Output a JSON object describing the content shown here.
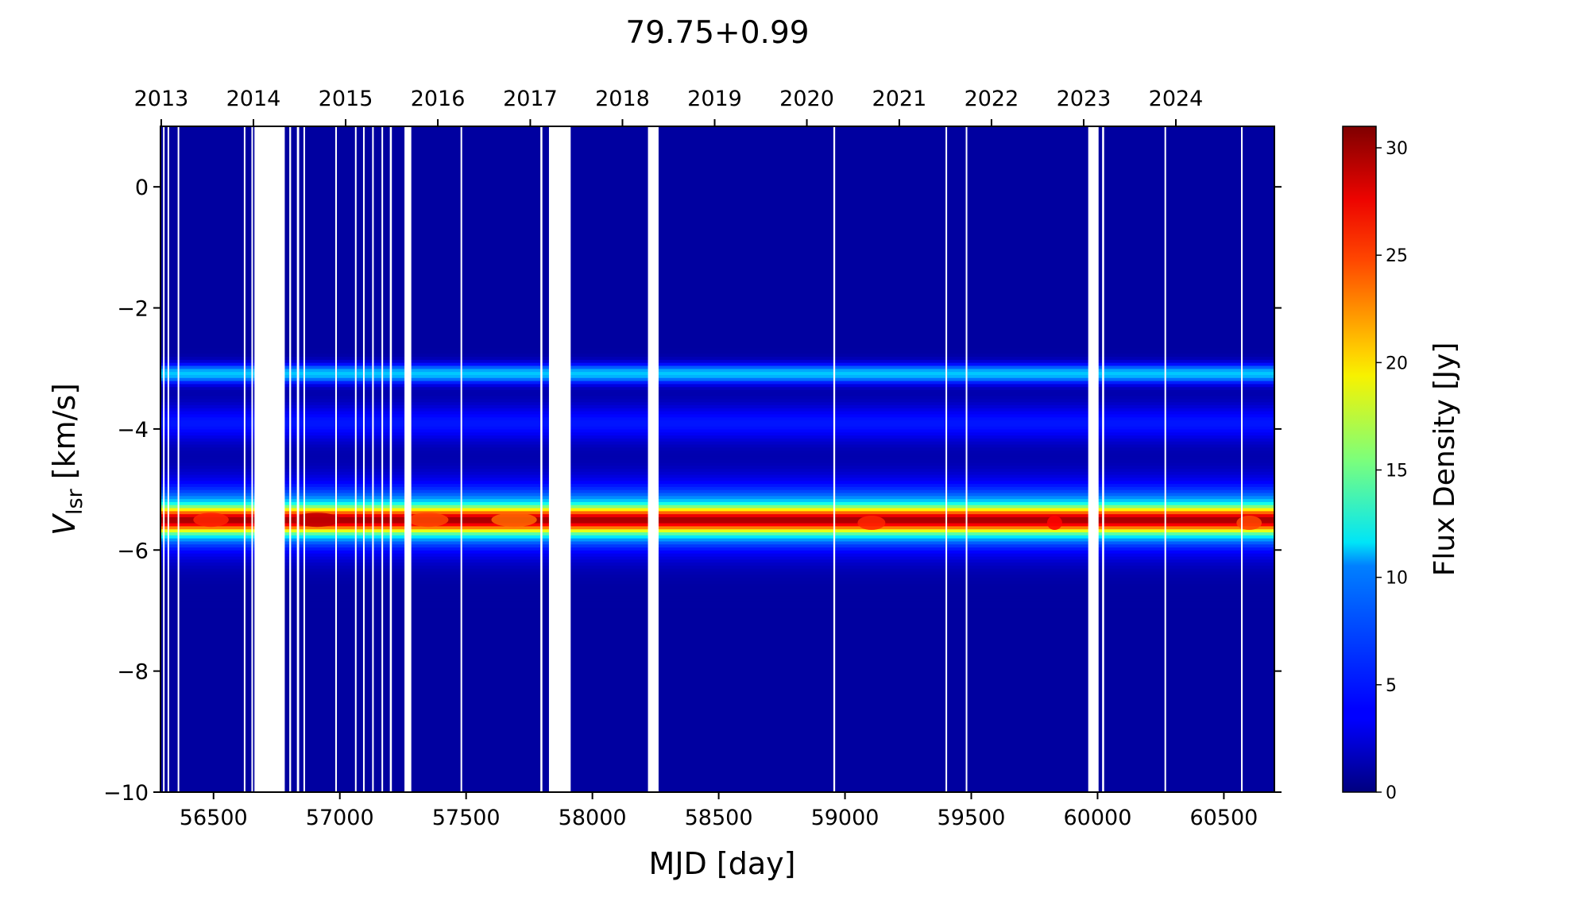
{
  "chart_data": {
    "type": "heatmap",
    "title": "79.75+0.99",
    "xlabel": "MJD [day]",
    "ylabel_main": "V",
    "ylabel_sub": "lsr",
    "ylabel_unit": " [km/s]",
    "xlim": [
      56290,
      60700
    ],
    "ylim": [
      -10,
      1
    ],
    "x_ticks": [
      "56500",
      "57000",
      "57500",
      "58000",
      "58500",
      "59000",
      "59500",
      "60000",
      "60500"
    ],
    "x_tick_values": [
      56500,
      57000,
      57500,
      58000,
      58500,
      59000,
      59500,
      60000,
      60500
    ],
    "y_ticks": [
      "0",
      "−2",
      "−4",
      "−6",
      "−8",
      "−10"
    ],
    "y_tick_values": [
      0,
      -2,
      -4,
      -6,
      -8,
      -10
    ],
    "top_axis_years": [
      "2013",
      "2014",
      "2015",
      "2016",
      "2017",
      "2018",
      "2019",
      "2020",
      "2021",
      "2022",
      "2023",
      "2024"
    ],
    "top_axis_mjd": [
      56293,
      56658,
      57023,
      57388,
      57754,
      58119,
      58484,
      58849,
      59215,
      59580,
      59945,
      60310
    ],
    "colorbar": {
      "label": "Flux Density [Jy]",
      "range": [
        0,
        31
      ],
      "ticks": [
        "0",
        "5",
        "10",
        "15",
        "20",
        "25",
        "30"
      ],
      "tick_values": [
        0,
        5,
        10,
        15,
        20,
        25,
        30
      ],
      "colormap": "jet"
    },
    "background_flux": 1.0,
    "spectral_features": [
      {
        "name": "main-peak",
        "velocity": -5.5,
        "width": 0.15,
        "peak_flux": 20
      },
      {
        "name": "main-shoulder",
        "velocity": -5.45,
        "width": 0.38,
        "peak_flux": 9
      },
      {
        "name": "secondary-peak",
        "velocity": -3.08,
        "width": 0.11,
        "peak_flux": 9
      },
      {
        "name": "tertiary-peak",
        "velocity": -3.9,
        "width": 0.22,
        "peak_flux": 3.5
      }
    ],
    "bright_episodes": [
      {
        "mjd_range": [
          56420,
          56560
        ],
        "velocity": -5.5,
        "flux": 26
      },
      {
        "mjd_range": [
          56820,
          57000
        ],
        "velocity": -5.5,
        "flux": 29
      },
      {
        "mjd_range": [
          57270,
          57430
        ],
        "velocity": -5.5,
        "flux": 25
      },
      {
        "mjd_range": [
          57600,
          57780
        ],
        "velocity": -5.5,
        "flux": 24
      },
      {
        "mjd_range": [
          59050,
          59160
        ],
        "velocity": -5.55,
        "flux": 26
      },
      {
        "mjd_range": [
          59800,
          59860
        ],
        "velocity": -5.55,
        "flux": 27
      },
      {
        "mjd_range": [
          60550,
          60650
        ],
        "velocity": -5.55,
        "flux": 25
      }
    ],
    "data_gaps_mjd": [
      [
        56300,
        56303
      ],
      [
        56318,
        56321
      ],
      [
        56358,
        56361
      ],
      [
        56620,
        56624
      ],
      [
        56650,
        56653
      ],
      [
        56662,
        56782
      ],
      [
        56800,
        56807
      ],
      [
        56830,
        56839
      ],
      [
        56856,
        56862
      ],
      [
        56982,
        56986
      ],
      [
        57060,
        57064
      ],
      [
        57092,
        57098
      ],
      [
        57128,
        57134
      ],
      [
        57165,
        57171
      ],
      [
        57198,
        57206
      ],
      [
        57256,
        57283
      ],
      [
        57478,
        57482
      ],
      [
        57794,
        57802
      ],
      [
        57828,
        57914
      ],
      [
        58220,
        58262
      ],
      [
        58954,
        58961
      ],
      [
        59398,
        59402
      ],
      [
        59478,
        59483
      ],
      [
        59963,
        60004
      ],
      [
        60018,
        60026
      ],
      [
        60265,
        60271
      ],
      [
        60568,
        60572
      ]
    ]
  }
}
